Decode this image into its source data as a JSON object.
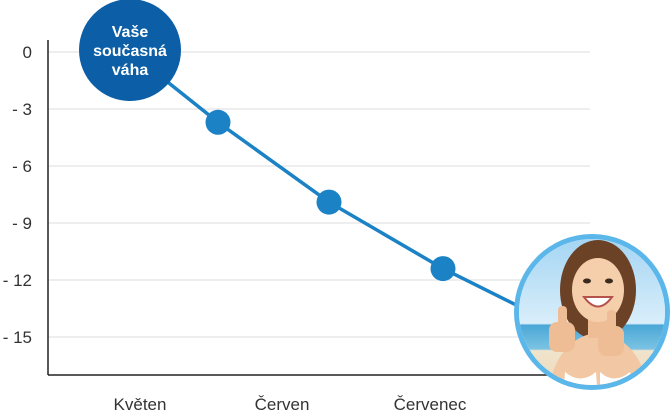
{
  "chart_data": {
    "type": "line",
    "title": "",
    "xlabel": "",
    "ylabel": "",
    "categories": [
      "Květen",
      "Červen",
      "Červenec"
    ],
    "y_ticks": [
      "0",
      "- 3",
      "- 6",
      "- 9",
      "- 12",
      "- 15"
    ],
    "ylim": [
      -17,
      0
    ],
    "grid": true,
    "series": [
      {
        "points": [
          {
            "x": "start",
            "y": 0
          },
          {
            "x": "Květen",
            "y": -3.7
          },
          {
            "x": "Červen",
            "y": -7.9
          },
          {
            "x": "Červenec",
            "y": -11.4
          },
          {
            "x": "end",
            "y": -15.3
          }
        ]
      }
    ],
    "start_badge": [
      "Vaše",
      "současná",
      "váha"
    ],
    "end_marker": "photo-circle",
    "colors": {
      "line": "#1b82c5",
      "marker": "#1b82c5",
      "badge": "#0c5fa6",
      "photo_ring": "#5bb6ea",
      "grid": "#dddddd",
      "axis": "#222222"
    }
  }
}
